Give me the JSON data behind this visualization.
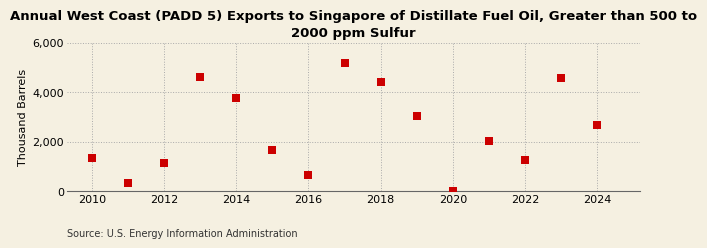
{
  "title": "Annual West Coast (PADD 5) Exports to Singapore of Distillate Fuel Oil, Greater than 500 to\n2000 ppm Sulfur",
  "ylabel": "Thousand Barrels",
  "source": "Source: U.S. Energy Information Administration",
  "x": [
    2010,
    2011,
    2012,
    2013,
    2014,
    2015,
    2016,
    2017,
    2018,
    2019,
    2020,
    2021,
    2022,
    2023,
    2024
  ],
  "y": [
    1350,
    330,
    1150,
    4620,
    3750,
    1680,
    650,
    5180,
    4430,
    3030,
    20,
    2020,
    1270,
    4590,
    2680
  ],
  "marker_color": "#cc0000",
  "marker_size": 28,
  "bg_color": "#f5f0e1",
  "grid_color": "#aaaaaa",
  "xlim": [
    2009.3,
    2025.2
  ],
  "ylim": [
    0,
    6000
  ],
  "yticks": [
    0,
    2000,
    4000,
    6000
  ],
  "xticks": [
    2010,
    2012,
    2014,
    2016,
    2018,
    2020,
    2022,
    2024
  ],
  "title_fontsize": 9.5,
  "ylabel_fontsize": 8,
  "tick_fontsize": 8,
  "source_fontsize": 7
}
